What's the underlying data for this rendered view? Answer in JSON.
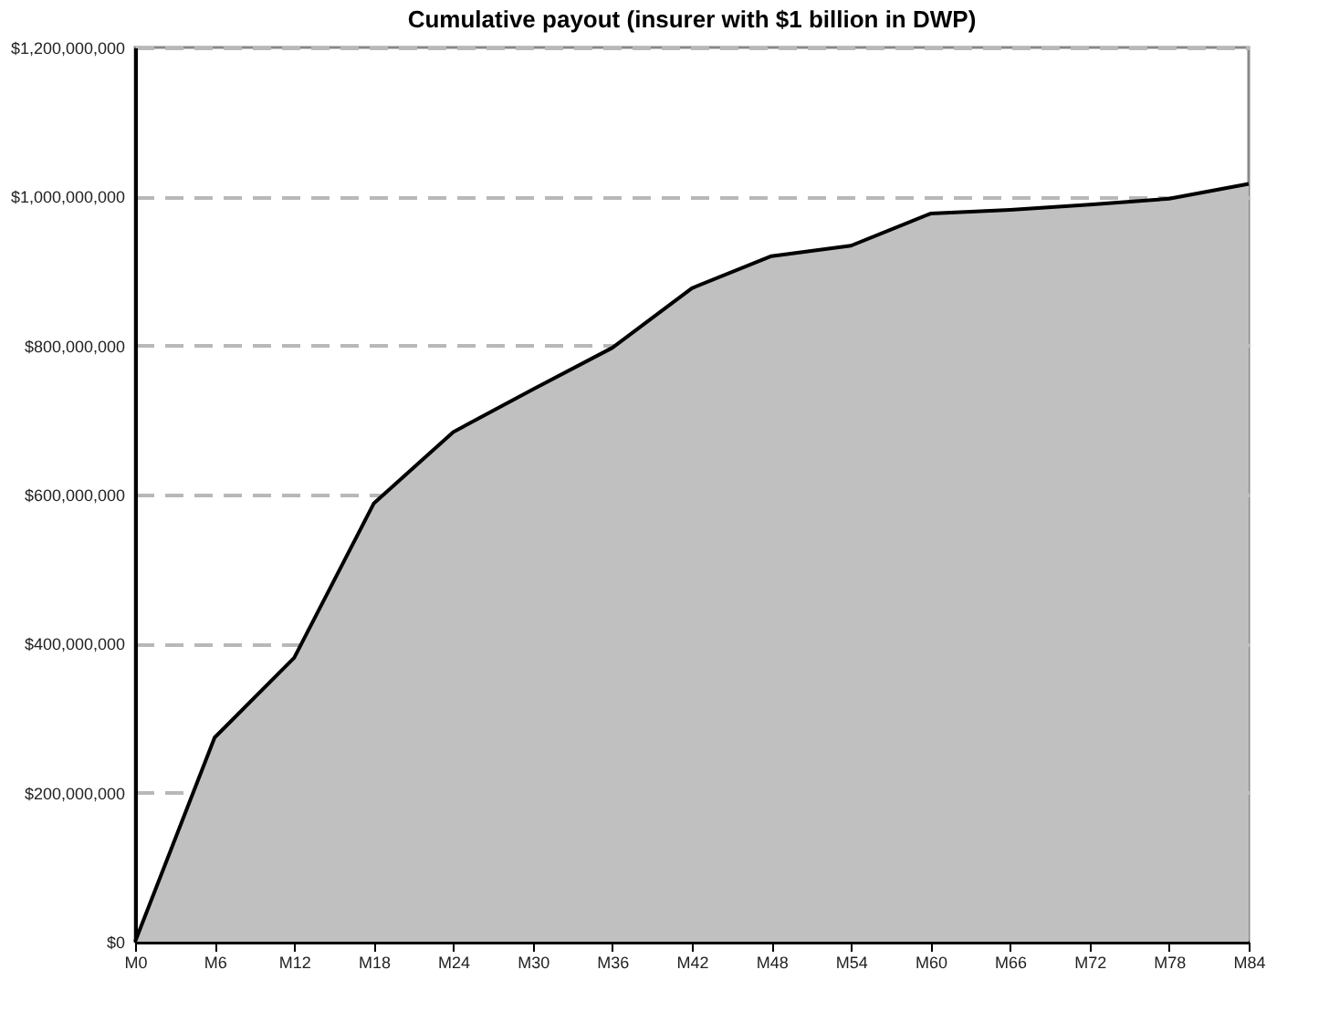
{
  "chart_data": {
    "type": "area",
    "title": "Cumulative payout (insurer with $1 billion in DWP)",
    "categories": [
      "M0",
      "M6",
      "M12",
      "M18",
      "M24",
      "M30",
      "M36",
      "M42",
      "M48",
      "M54",
      "M60",
      "M66",
      "M72",
      "M78",
      "M84"
    ],
    "series": [
      {
        "color": "#c0c0c0",
        "values": [
          0,
          274000000,
          381000000,
          588000000,
          684000000,
          741000000,
          797000000,
          877000000,
          920000000,
          934000000,
          977000000,
          982000000,
          989000000,
          997000000,
          1017000000
        ]
      }
    ],
    "ylim": [
      0,
      1200000000
    ],
    "yticks": [
      {
        "value": 0,
        "label": "$0"
      },
      {
        "value": 200000000,
        "label": "$200,000,000"
      },
      {
        "value": 400000000,
        "label": "$400,000,000"
      },
      {
        "value": 600000000,
        "label": "$600,000,000"
      },
      {
        "value": 800000000,
        "label": "$800,000,000"
      },
      {
        "value": 1000000000,
        "label": "$1,000,000,000"
      },
      {
        "value": 1200000000,
        "label": "$1,200,000,000"
      }
    ],
    "grid": "y",
    "line_style": "solid",
    "marker": "none"
  }
}
